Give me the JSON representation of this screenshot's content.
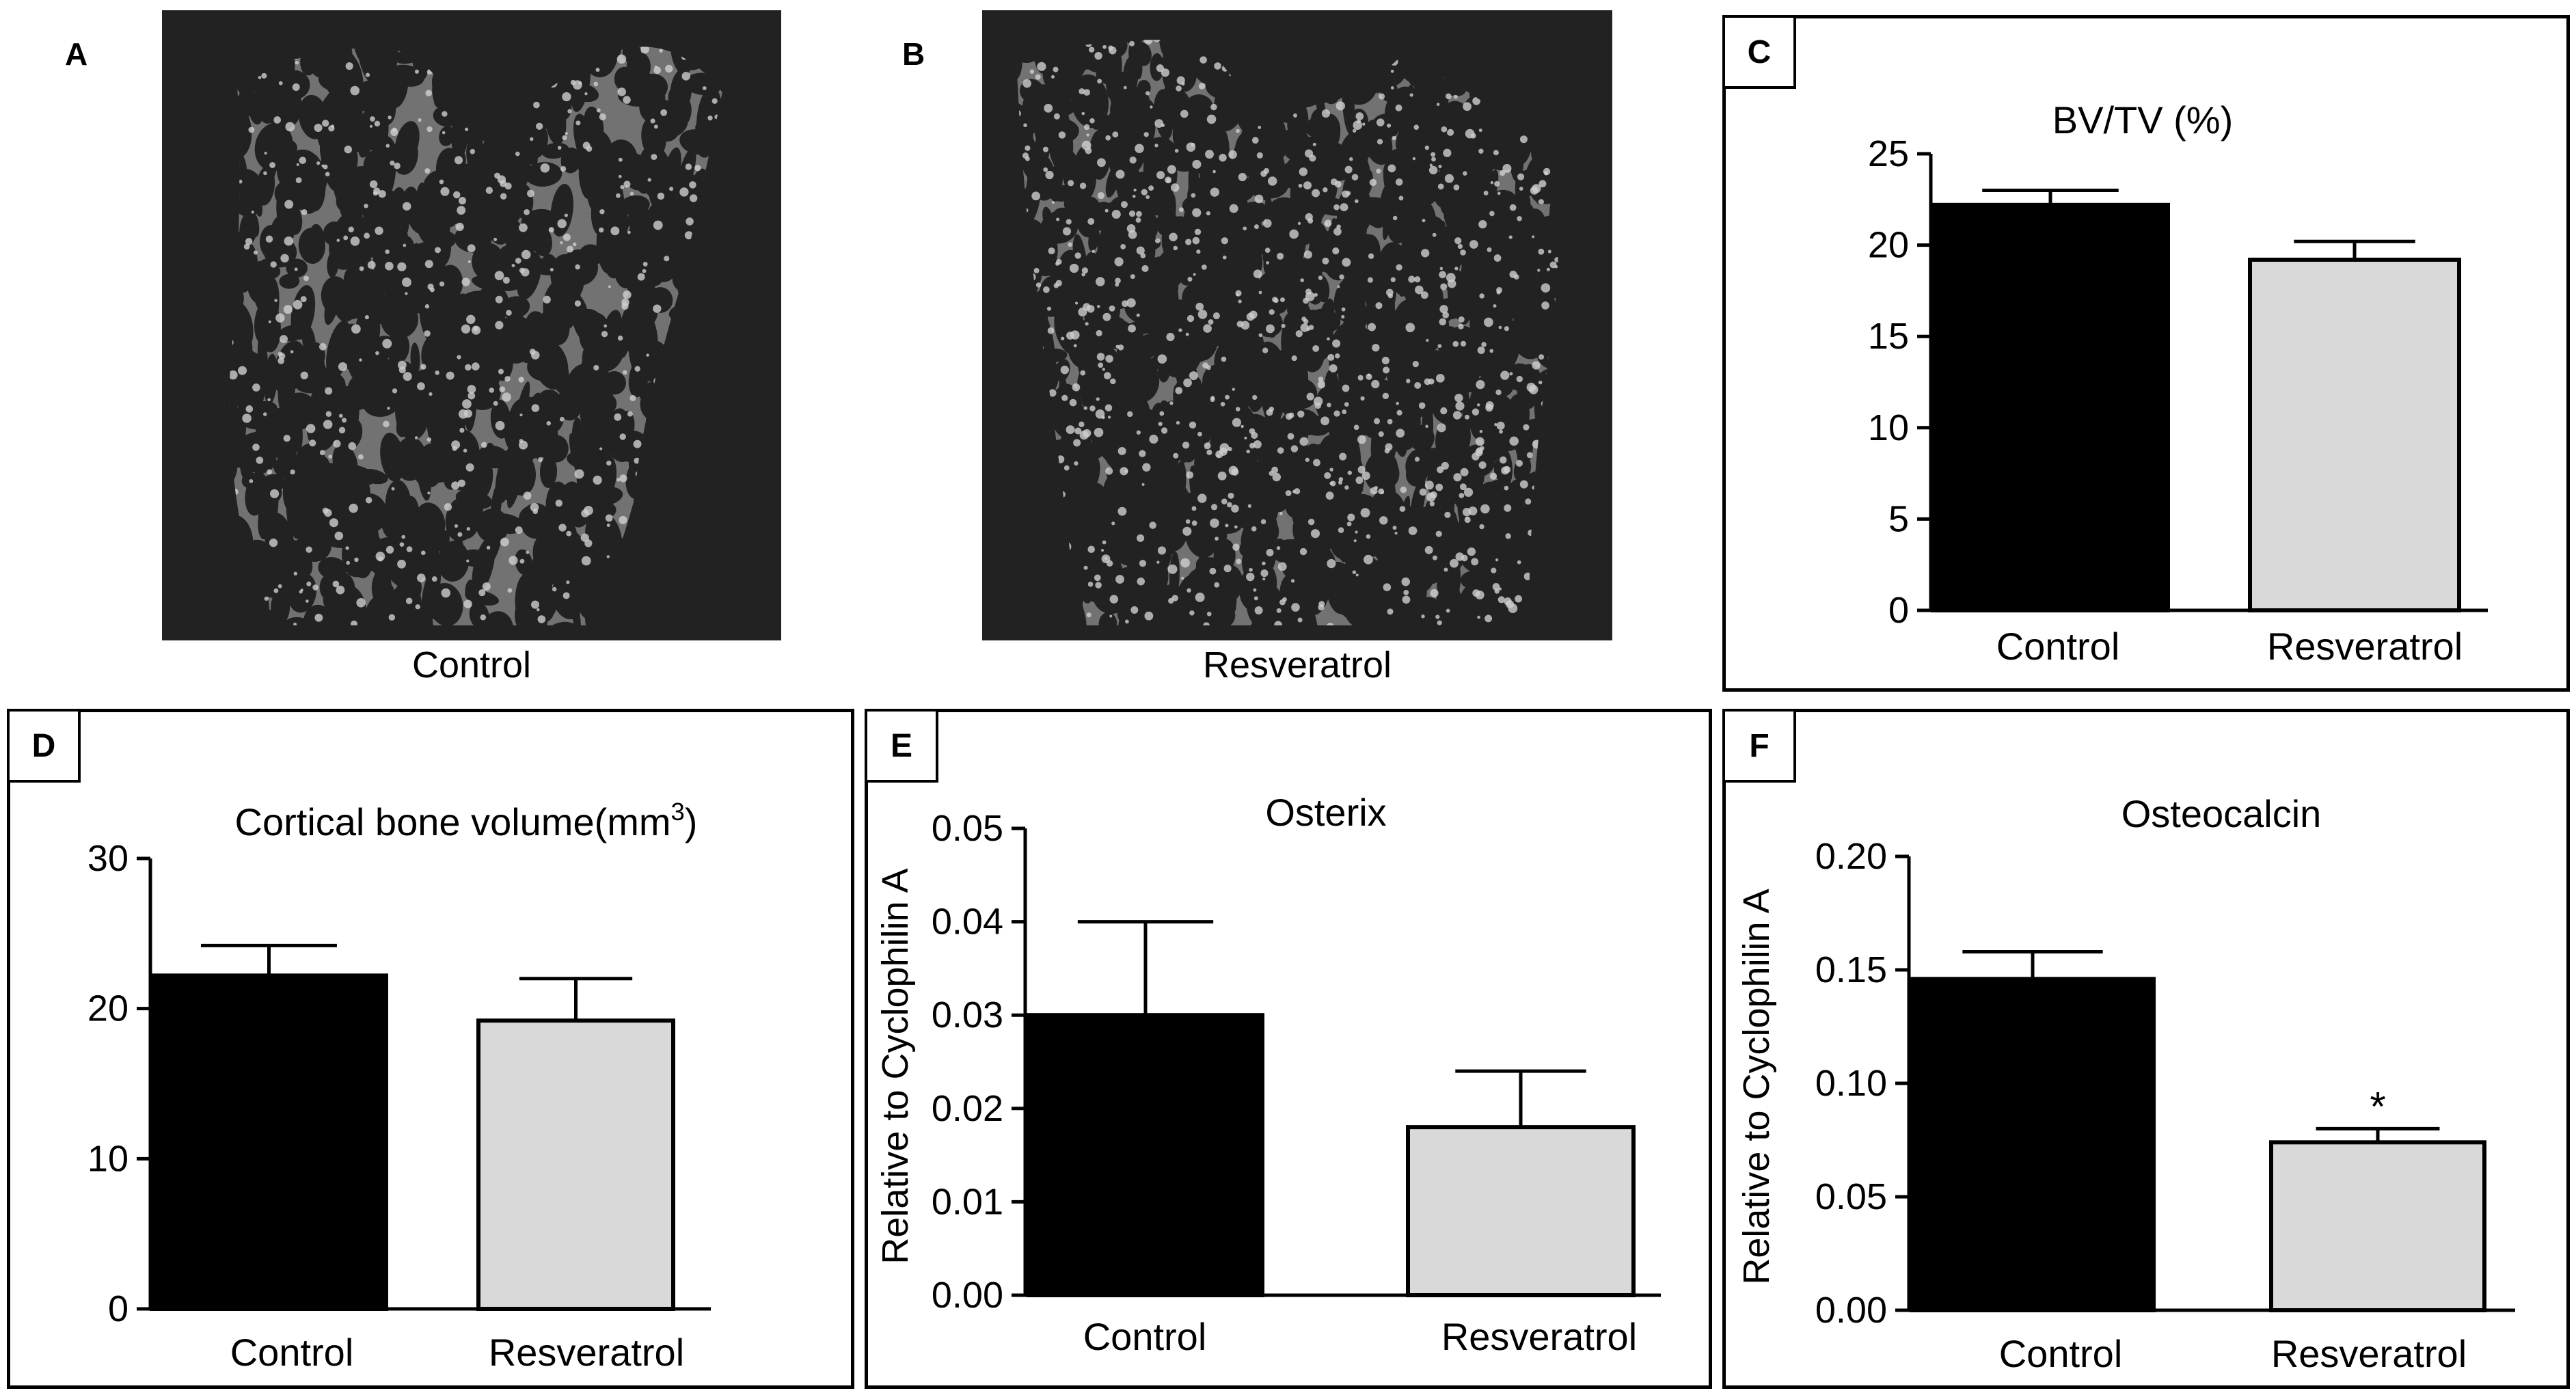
{
  "panels": {
    "a": {
      "letter": "A",
      "caption": "Control"
    },
    "b": {
      "letter": "B",
      "caption": "Resveratrol"
    }
  },
  "colors": {
    "control": "#000000",
    "resveratrol": "#d9d9d9",
    "micro_bg": "#222222",
    "micro_bone": "#b4b4b4"
  },
  "chart_data": [
    {
      "id": "C",
      "letter": "C",
      "type": "bar",
      "title": "BV/TV (%)",
      "ylabel": "",
      "categories": [
        "Control",
        "Resveratrol"
      ],
      "values": [
        22.2,
        19.2
      ],
      "errors": [
        0.8,
        1.0
      ],
      "ylim": [
        0,
        25
      ],
      "yticks": [
        0,
        5,
        10,
        15,
        20,
        25
      ],
      "ytick_labels": [
        "0",
        "5",
        "10",
        "15",
        "20",
        "25"
      ],
      "annotations": [
        "",
        ""
      ],
      "grid": false,
      "legend": "none"
    },
    {
      "id": "D",
      "letter": "D",
      "type": "bar",
      "title": "Cortical bone volume(mm",
      "title_sup": "3",
      "title_end": ")",
      "ylabel": "",
      "categories": [
        "Control",
        "Resveratrol"
      ],
      "values": [
        22.2,
        19.2
      ],
      "errors": [
        2.0,
        2.8
      ],
      "ylim": [
        0,
        30
      ],
      "yticks": [
        0,
        10,
        20,
        30
      ],
      "ytick_labels": [
        "0",
        "10",
        "20",
        "30"
      ],
      "annotations": [
        "",
        ""
      ],
      "grid": false,
      "legend": "none"
    },
    {
      "id": "E",
      "letter": "E",
      "type": "bar",
      "title": "Osterix",
      "ylabel": "Relative to Cyclophilin A",
      "categories": [
        "Control",
        "Resveratrol"
      ],
      "values": [
        0.03,
        0.018
      ],
      "errors": [
        0.01,
        0.006
      ],
      "ylim": [
        0,
        0.05
      ],
      "yticks": [
        0,
        0.01,
        0.02,
        0.03,
        0.04,
        0.05
      ],
      "ytick_labels": [
        "0.00",
        "0.01",
        "0.02",
        "0.03",
        "0.04",
        "0.05"
      ],
      "annotations": [
        "",
        ""
      ],
      "grid": false,
      "legend": "none"
    },
    {
      "id": "F",
      "letter": "F",
      "type": "bar",
      "title": "Osteocalcin",
      "ylabel": "Relative to Cyclophilin A",
      "categories": [
        "Control",
        "Resveratrol"
      ],
      "values": [
        0.146,
        0.074
      ],
      "errors": [
        0.012,
        0.006
      ],
      "ylim": [
        0,
        0.2
      ],
      "yticks": [
        0,
        0.05,
        0.1,
        0.15,
        0.2
      ],
      "ytick_labels": [
        "0.00",
        "0.05",
        "0.10",
        "0.15",
        "0.20"
      ],
      "annotations": [
        "",
        "*"
      ],
      "grid": false,
      "legend": "none"
    }
  ]
}
